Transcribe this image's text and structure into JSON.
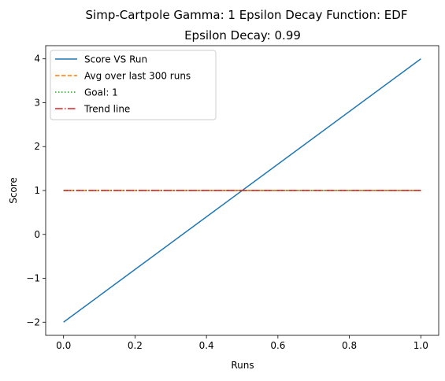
{
  "chart_data": {
    "type": "line",
    "title": "Simp-Cartpole Gamma: 1 Epsilon Decay Function: EDF",
    "subtitle": "Epsilon Decay: 0.99",
    "xlabel": "Runs",
    "ylabel": "Score",
    "xlim": [
      -0.05,
      1.05
    ],
    "ylim": [
      -2.3,
      4.3
    ],
    "xticks": [
      0.0,
      0.2,
      0.4,
      0.6,
      0.8,
      1.0
    ],
    "xtick_labels": [
      "0.0",
      "0.2",
      "0.4",
      "0.6",
      "0.8",
      "1.0"
    ],
    "yticks": [
      -2,
      -1,
      0,
      1,
      2,
      3,
      4
    ],
    "ytick_labels": [
      "−2",
      "−1",
      "0",
      "1",
      "2",
      "3",
      "4"
    ],
    "grid": false,
    "legend_position": "top-left",
    "series": [
      {
        "name": "Score VS Run",
        "x": [
          0,
          1
        ],
        "y": [
          -2,
          4
        ],
        "color": "#1f77b4",
        "dash": "solid"
      },
      {
        "name": "Avg over last 300 runs",
        "x": [
          0,
          1
        ],
        "y": [
          1,
          1
        ],
        "color": "#ff7f0e",
        "dash": "dashed"
      },
      {
        "name": "Goal: 1",
        "x": [
          0,
          1
        ],
        "y": [
          1,
          1
        ],
        "color": "#2ca02c",
        "dash": "dotted"
      },
      {
        "name": "Trend line",
        "x": [
          0,
          1
        ],
        "y": [
          1,
          1
        ],
        "color": "#d62728",
        "dash": "dashdot"
      }
    ]
  }
}
